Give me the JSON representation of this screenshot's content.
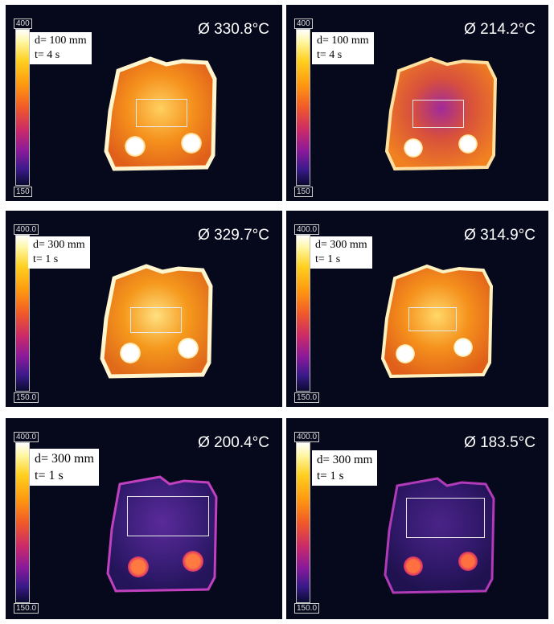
{
  "panels": [
    {
      "scale_max": "400",
      "scale_min": "150",
      "distance": "d= 100 mm",
      "time": "t= 4 s",
      "avg_temp": "Ø 330.8°C",
      "palette": "hot"
    },
    {
      "scale_max": "400",
      "scale_min": "150",
      "distance": "d= 100 mm",
      "time": "t= 4 s",
      "avg_temp": "Ø 214.2°C",
      "palette": "hot-purple-center"
    },
    {
      "scale_max": "400.0",
      "scale_min": "150.0",
      "distance": "d= 300 mm",
      "time": "t= 1 s",
      "avg_temp": "Ø 329.7°C",
      "palette": "hot"
    },
    {
      "scale_max": "400.0",
      "scale_min": "150.0",
      "distance": "d= 300 mm",
      "time": "t= 1 s",
      "avg_temp": "Ø 314.9°C",
      "palette": "hot"
    },
    {
      "scale_max": "400.0",
      "scale_min": "150.0",
      "distance": "d= 300 mm",
      "time": "t= 1 s",
      "avg_temp": "Ø 200.4°C",
      "palette": "cool"
    },
    {
      "scale_max": "400.0",
      "scale_min": "150.0",
      "distance": "d= 300 mm",
      "time": "t= 1 s",
      "avg_temp": "Ø 183.5°C",
      "palette": "cool"
    }
  ],
  "colors": {
    "background": "#06081c",
    "hot_fill": "#f07a18",
    "hot_edge": "#fff4c8",
    "cool_fill": "#3a1e78",
    "cool_edge": "#c040c0"
  }
}
